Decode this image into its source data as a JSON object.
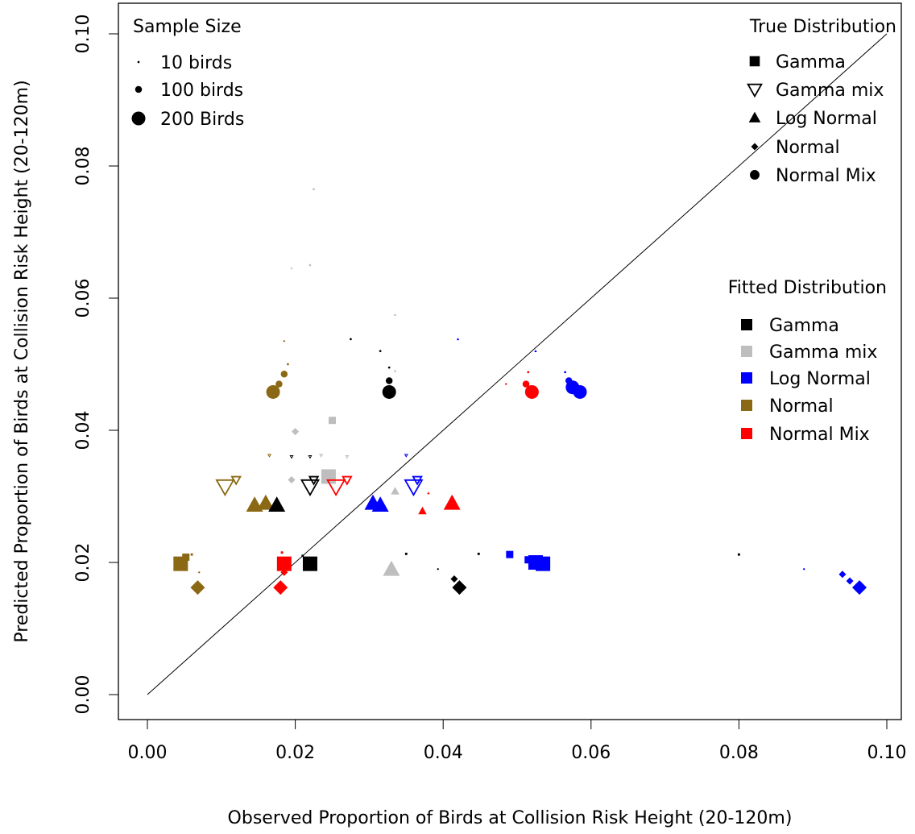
{
  "chart_data": {
    "type": "scatter",
    "xlabel": "Observed Proportion of Birds at Collision Risk Height (20-120m)",
    "ylabel": "Predicted Proportion of Birds at Collision Risk Height (20-120m)",
    "xlim": [
      0.0,
      0.1
    ],
    "ylim": [
      0.0,
      0.1
    ],
    "x_ticks": [
      "0.00",
      "0.02",
      "0.04",
      "0.06",
      "0.08",
      "0.10"
    ],
    "y_ticks": [
      "0.00",
      "0.02",
      "0.04",
      "0.06",
      "0.08",
      "0.10"
    ],
    "reference_line": "y = x",
    "grid": false,
    "legend_sample_size": {
      "title": "Sample Size",
      "position": "top-left",
      "items": [
        {
          "label": "10 birds",
          "n": 10
        },
        {
          "label": "100 birds",
          "n": 100
        },
        {
          "label": "200 Birds",
          "n": 200
        }
      ]
    },
    "legend_true_distribution": {
      "title": "True Distribution",
      "position": "top-right",
      "items": [
        {
          "label": "Gamma",
          "shape": "square"
        },
        {
          "label": "Gamma mix",
          "shape": "triangle-down-open"
        },
        {
          "label": "Log Normal",
          "shape": "triangle-up"
        },
        {
          "label": "Normal",
          "shape": "diamond"
        },
        {
          "label": "Normal Mix",
          "shape": "circle"
        }
      ]
    },
    "legend_fitted_distribution": {
      "title": "Fitted Distribution",
      "position": "right",
      "items": [
        {
          "label": "Gamma",
          "color": "#000000"
        },
        {
          "label": "Gamma mix",
          "color": "#bebebe"
        },
        {
          "label": "Log Normal",
          "color": "#0000ff"
        },
        {
          "label": "Normal",
          "color": "#8b6914"
        },
        {
          "label": "Normal Mix",
          "color": "#ff0000"
        }
      ]
    },
    "points": [
      {
        "x": 0.0045,
        "y": 0.0198,
        "true": "Gamma",
        "fit": "Normal",
        "n": 200
      },
      {
        "x": 0.0052,
        "y": 0.0208,
        "true": "Gamma",
        "fit": "Normal",
        "n": 100
      },
      {
        "x": 0.006,
        "y": 0.0212,
        "true": "Gamma",
        "fit": "Normal",
        "n": 10
      },
      {
        "x": 0.0185,
        "y": 0.0198,
        "true": "Gamma",
        "fit": "Normal Mix",
        "n": 200
      },
      {
        "x": 0.0182,
        "y": 0.0215,
        "true": "Gamma",
        "fit": "Normal Mix",
        "n": 10
      },
      {
        "x": 0.022,
        "y": 0.0198,
        "true": "Gamma",
        "fit": "Gamma",
        "n": 200
      },
      {
        "x": 0.021,
        "y": 0.021,
        "true": "Gamma",
        "fit": "Gamma",
        "n": 10
      },
      {
        "x": 0.0535,
        "y": 0.0198,
        "true": "Gamma",
        "fit": "Log Normal",
        "n": 200
      },
      {
        "x": 0.0525,
        "y": 0.02,
        "true": "Gamma",
        "fit": "Log Normal",
        "n": 200
      },
      {
        "x": 0.0515,
        "y": 0.0204,
        "true": "Gamma",
        "fit": "Log Normal",
        "n": 100
      },
      {
        "x": 0.049,
        "y": 0.0212,
        "true": "Gamma",
        "fit": "Log Normal",
        "n": 100
      },
      {
        "x": 0.0448,
        "y": 0.0213,
        "true": "Gamma",
        "fit": "Gamma",
        "n": 10
      },
      {
        "x": 0.025,
        "y": 0.0415,
        "true": "Gamma",
        "fit": "Gamma mix",
        "n": 100
      },
      {
        "x": 0.0245,
        "y": 0.033,
        "true": "Gamma",
        "fit": "Gamma mix",
        "n": 200
      },
      {
        "x": 0.08,
        "y": 0.0212,
        "true": "Gamma",
        "fit": "Gamma",
        "n": 10
      },
      {
        "x": 0.0105,
        "y": 0.0315,
        "true": "Gamma mix",
        "fit": "Normal",
        "n": 200
      },
      {
        "x": 0.012,
        "y": 0.0325,
        "true": "Gamma mix",
        "fit": "Normal",
        "n": 100
      },
      {
        "x": 0.022,
        "y": 0.0315,
        "true": "Gamma mix",
        "fit": "Gamma",
        "n": 200
      },
      {
        "x": 0.0225,
        "y": 0.0325,
        "true": "Gamma mix",
        "fit": "Gamma",
        "n": 100
      },
      {
        "x": 0.0255,
        "y": 0.0315,
        "true": "Gamma mix",
        "fit": "Normal Mix",
        "n": 200
      },
      {
        "x": 0.027,
        "y": 0.0325,
        "true": "Gamma mix",
        "fit": "Normal Mix",
        "n": 100
      },
      {
        "x": 0.036,
        "y": 0.0315,
        "true": "Gamma mix",
        "fit": "Log Normal",
        "n": 200
      },
      {
        "x": 0.0365,
        "y": 0.0325,
        "true": "Gamma mix",
        "fit": "Log Normal",
        "n": 100
      },
      {
        "x": 0.0145,
        "y": 0.0287,
        "true": "Log Normal",
        "fit": "Normal",
        "n": 200
      },
      {
        "x": 0.016,
        "y": 0.029,
        "true": "Log Normal",
        "fit": "Normal",
        "n": 200
      },
      {
        "x": 0.0175,
        "y": 0.0287,
        "true": "Log Normal",
        "fit": "Gamma",
        "n": 200
      },
      {
        "x": 0.0305,
        "y": 0.029,
        "true": "Log Normal",
        "fit": "Log Normal",
        "n": 200
      },
      {
        "x": 0.0315,
        "y": 0.0287,
        "true": "Log Normal",
        "fit": "Log Normal",
        "n": 200
      },
      {
        "x": 0.0335,
        "y": 0.0308,
        "true": "Log Normal",
        "fit": "Gamma mix",
        "n": 100
      },
      {
        "x": 0.033,
        "y": 0.019,
        "true": "Log Normal",
        "fit": "Gamma mix",
        "n": 200
      },
      {
        "x": 0.0372,
        "y": 0.0278,
        "true": "Log Normal",
        "fit": "Normal Mix",
        "n": 100
      },
      {
        "x": 0.038,
        "y": 0.0305,
        "true": "Log Normal",
        "fit": "Normal Mix",
        "n": 10
      },
      {
        "x": 0.0412,
        "y": 0.029,
        "true": "Log Normal",
        "fit": "Normal Mix",
        "n": 200
      },
      {
        "x": 0.0335,
        "y": 0.0575,
        "true": "Log Normal",
        "fit": "Gamma mix",
        "n": 10
      },
      {
        "x": 0.0335,
        "y": 0.049,
        "true": "Log Normal",
        "fit": "Gamma mix",
        "n": 10
      },
      {
        "x": 0.0525,
        "y": 0.052,
        "true": "Log Normal",
        "fit": "Log Normal",
        "n": 10
      },
      {
        "x": 0.042,
        "y": 0.0538,
        "true": "Log Normal",
        "fit": "Log Normal",
        "n": 10
      },
      {
        "x": 0.0068,
        "y": 0.0162,
        "true": "Normal",
        "fit": "Normal",
        "n": 200
      },
      {
        "x": 0.007,
        "y": 0.0185,
        "true": "Normal",
        "fit": "Normal",
        "n": 10
      },
      {
        "x": 0.018,
        "y": 0.0162,
        "true": "Normal",
        "fit": "Normal Mix",
        "n": 200
      },
      {
        "x": 0.0185,
        "y": 0.0185,
        "true": "Normal",
        "fit": "Normal Mix",
        "n": 100
      },
      {
        "x": 0.0422,
        "y": 0.0162,
        "true": "Normal",
        "fit": "Gamma",
        "n": 200
      },
      {
        "x": 0.0415,
        "y": 0.0175,
        "true": "Normal",
        "fit": "Gamma",
        "n": 100
      },
      {
        "x": 0.0393,
        "y": 0.019,
        "true": "Normal",
        "fit": "Gamma",
        "n": 10
      },
      {
        "x": 0.0963,
        "y": 0.0162,
        "true": "Normal",
        "fit": "Log Normal",
        "n": 200
      },
      {
        "x": 0.095,
        "y": 0.0172,
        "true": "Normal",
        "fit": "Log Normal",
        "n": 100
      },
      {
        "x": 0.094,
        "y": 0.0182,
        "true": "Normal",
        "fit": "Log Normal",
        "n": 100
      },
      {
        "x": 0.0888,
        "y": 0.019,
        "true": "Normal",
        "fit": "Log Normal",
        "n": 10
      },
      {
        "x": 0.02,
        "y": 0.0398,
        "true": "Normal",
        "fit": "Gamma mix",
        "n": 100
      },
      {
        "x": 0.0195,
        "y": 0.0325,
        "true": "Normal",
        "fit": "Gamma mix",
        "n": 100
      },
      {
        "x": 0.0195,
        "y": 0.0645,
        "true": "Normal",
        "fit": "Gamma mix",
        "n": 10
      },
      {
        "x": 0.0185,
        "y": 0.0535,
        "true": "Normal",
        "fit": "Normal",
        "n": 10
      },
      {
        "x": 0.0485,
        "y": 0.047,
        "true": "Normal",
        "fit": "Normal Mix",
        "n": 10
      },
      {
        "x": 0.017,
        "y": 0.0458,
        "true": "Normal Mix",
        "fit": "Normal",
        "n": 200
      },
      {
        "x": 0.0178,
        "y": 0.047,
        "true": "Normal Mix",
        "fit": "Normal",
        "n": 100
      },
      {
        "x": 0.0185,
        "y": 0.0485,
        "true": "Normal Mix",
        "fit": "Normal",
        "n": 100
      },
      {
        "x": 0.019,
        "y": 0.05,
        "true": "Normal Mix",
        "fit": "Normal",
        "n": 10
      },
      {
        "x": 0.0327,
        "y": 0.0458,
        "true": "Normal Mix",
        "fit": "Gamma",
        "n": 200
      },
      {
        "x": 0.0327,
        "y": 0.0475,
        "true": "Normal Mix",
        "fit": "Gamma",
        "n": 100
      },
      {
        "x": 0.0327,
        "y": 0.0495,
        "true": "Normal Mix",
        "fit": "Gamma",
        "n": 10
      },
      {
        "x": 0.052,
        "y": 0.0458,
        "true": "Normal Mix",
        "fit": "Normal Mix",
        "n": 200
      },
      {
        "x": 0.0512,
        "y": 0.047,
        "true": "Normal Mix",
        "fit": "Normal Mix",
        "n": 100
      },
      {
        "x": 0.0515,
        "y": 0.0488,
        "true": "Normal Mix",
        "fit": "Normal Mix",
        "n": 10
      },
      {
        "x": 0.0585,
        "y": 0.0458,
        "true": "Normal Mix",
        "fit": "Log Normal",
        "n": 200
      },
      {
        "x": 0.0575,
        "y": 0.0465,
        "true": "Normal Mix",
        "fit": "Log Normal",
        "n": 200
      },
      {
        "x": 0.057,
        "y": 0.0475,
        "true": "Normal Mix",
        "fit": "Log Normal",
        "n": 100
      },
      {
        "x": 0.0565,
        "y": 0.0488,
        "true": "Normal Mix",
        "fit": "Log Normal",
        "n": 10
      },
      {
        "x": 0.022,
        "y": 0.065,
        "true": "Normal Mix",
        "fit": "Gamma mix",
        "n": 10
      },
      {
        "x": 0.0225,
        "y": 0.0765,
        "true": "Normal Mix",
        "fit": "Gamma mix",
        "n": 10
      },
      {
        "x": 0.0275,
        "y": 0.0538,
        "true": "Normal Mix",
        "fit": "Gamma",
        "n": 10
      },
      {
        "x": 0.0315,
        "y": 0.052,
        "true": "Normal Mix",
        "fit": "Gamma",
        "n": 10
      },
      {
        "x": 0.0165,
        "y": 0.0362,
        "true": "Gamma mix",
        "fit": "Normal",
        "n": 10
      },
      {
        "x": 0.0195,
        "y": 0.036,
        "true": "Gamma mix",
        "fit": "Gamma",
        "n": 10
      },
      {
        "x": 0.022,
        "y": 0.036,
        "true": "Gamma mix",
        "fit": "Gamma",
        "n": 10
      },
      {
        "x": 0.0235,
        "y": 0.0362,
        "true": "Gamma mix",
        "fit": "Gamma mix",
        "n": 10
      },
      {
        "x": 0.027,
        "y": 0.036,
        "true": "Gamma mix",
        "fit": "Gamma mix",
        "n": 10
      },
      {
        "x": 0.035,
        "y": 0.0362,
        "true": "Gamma mix",
        "fit": "Log Normal",
        "n": 10
      },
      {
        "x": 0.035,
        "y": 0.0213,
        "true": "Gamma",
        "fit": "Gamma",
        "n": 10
      }
    ]
  }
}
